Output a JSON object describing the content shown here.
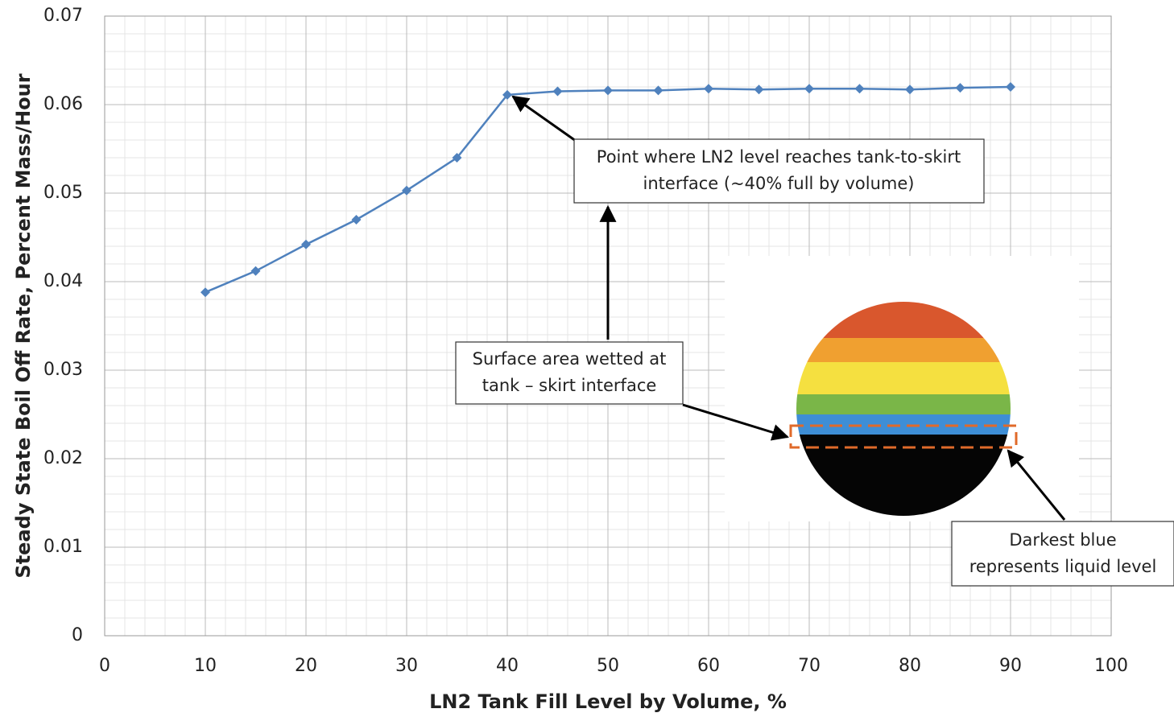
{
  "chart_data": {
    "type": "line",
    "x_label": "LN2 Tank Fill Level by Volume, %",
    "y_label": "Steady State Boil Off Rate, Percent Mass/Hour",
    "x": [
      10,
      15,
      20,
      25,
      30,
      35,
      40,
      45,
      50,
      55,
      60,
      65,
      70,
      75,
      80,
      85,
      90
    ],
    "values": [
      0.0388,
      0.0412,
      0.0442,
      0.047,
      0.0503,
      0.054,
      0.0611,
      0.0615,
      0.0616,
      0.0616,
      0.0618,
      0.0617,
      0.0618,
      0.0618,
      0.0617,
      0.0619,
      0.062
    ],
    "color": "#4f81bd",
    "xlim": [
      0,
      100
    ],
    "xticks": [
      0,
      10,
      20,
      30,
      40,
      50,
      60,
      70,
      80,
      90,
      100
    ],
    "ylim": [
      0,
      0.07
    ],
    "yticks": [
      0,
      0.01,
      0.02,
      0.03,
      0.04,
      0.05,
      0.06,
      0.07
    ],
    "grid": true,
    "annotations": [
      {
        "lines": [
          "Point where LN2 level reaches  tank-to-skirt",
          "interface (~40% full by volume)"
        ]
      },
      {
        "lines": [
          "Surface area wetted at",
          "tank – skirt interface"
        ]
      },
      {
        "lines": [
          "Darkest blue",
          "represents liquid level"
        ]
      }
    ]
  }
}
